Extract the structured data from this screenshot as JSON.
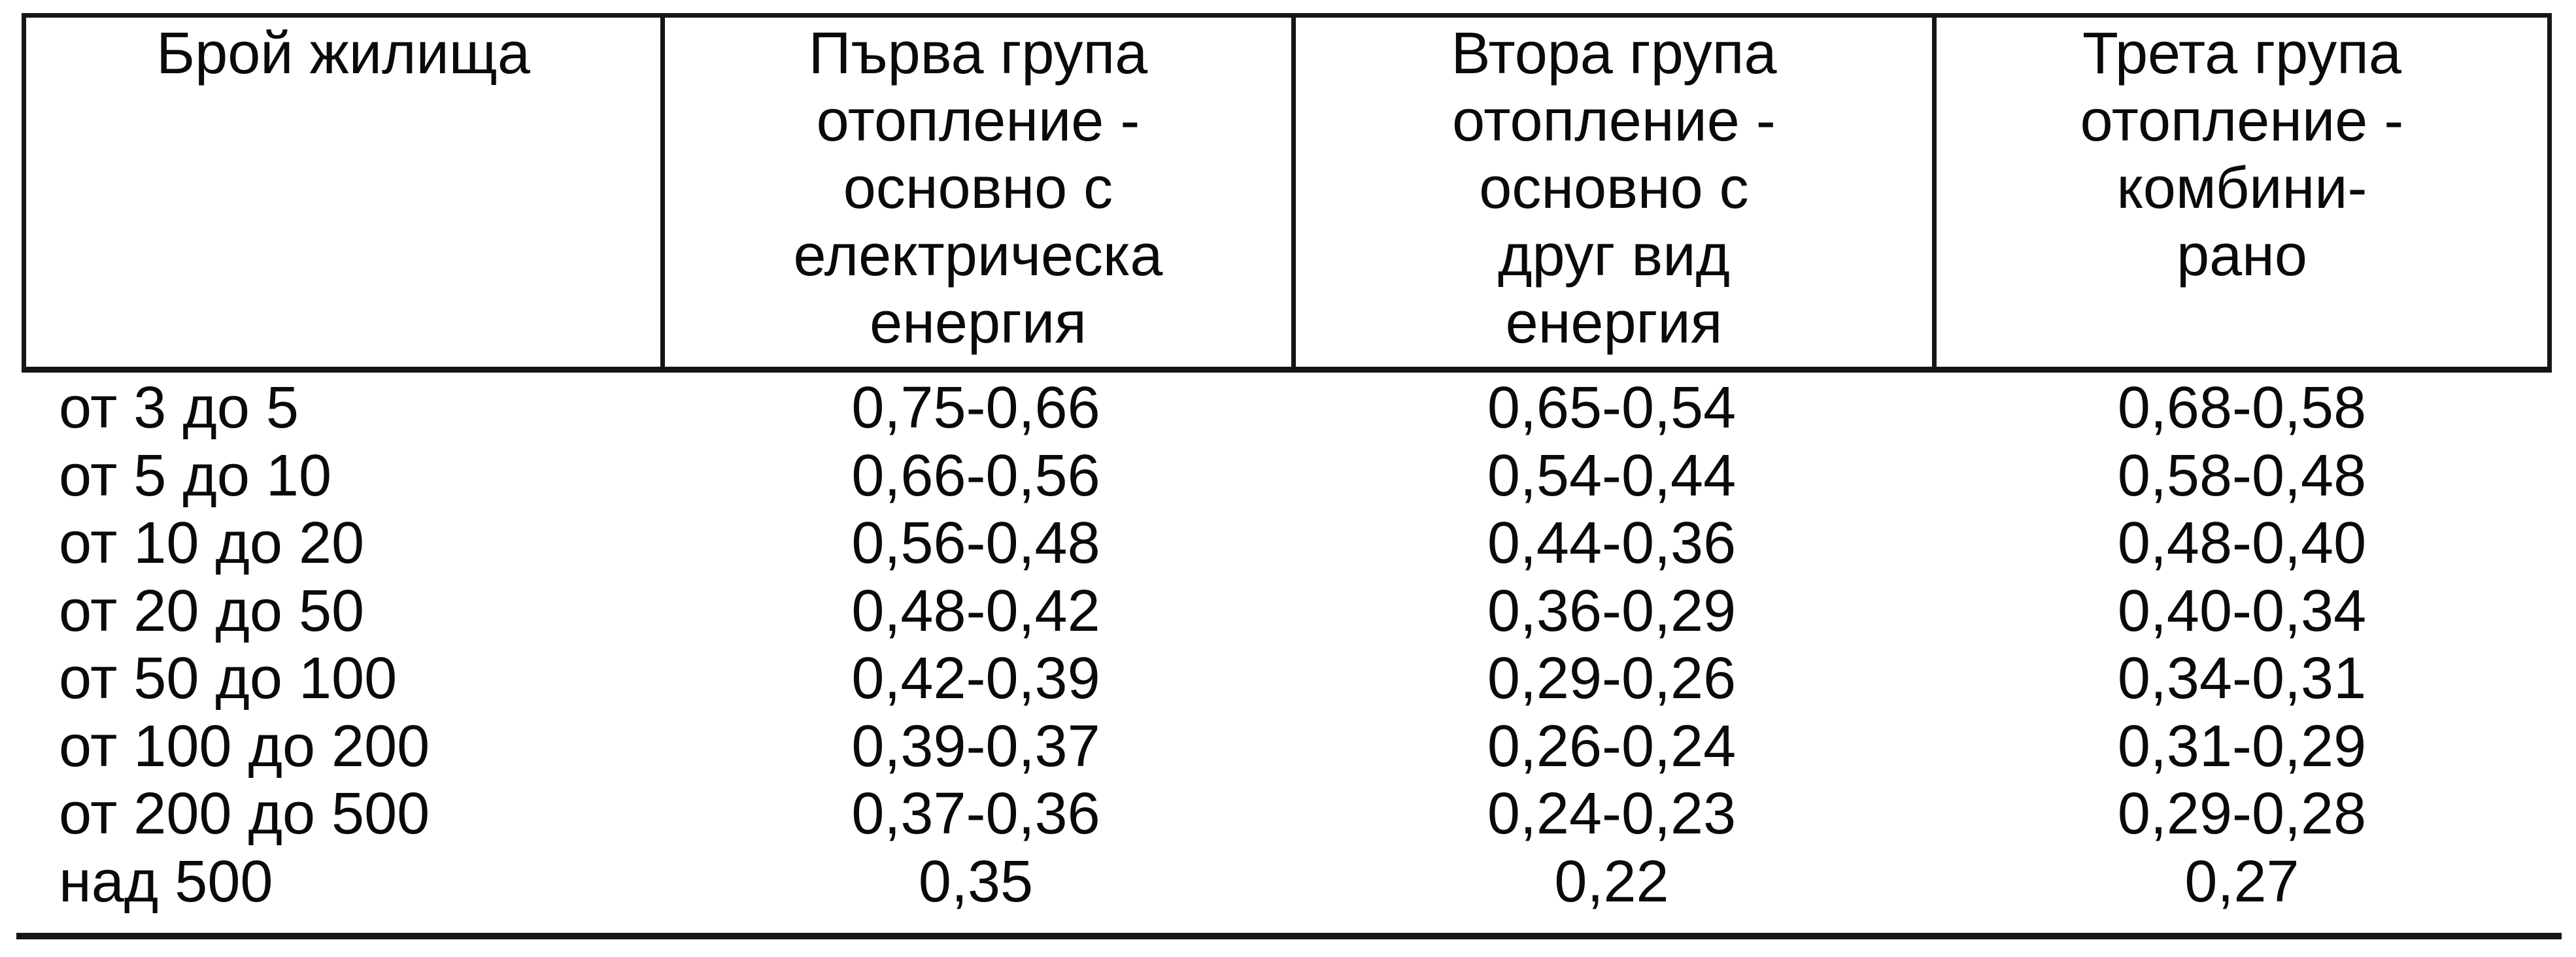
{
  "page": {
    "background_color": "#ffffff",
    "text_color": "#0a0a0a",
    "line_color": "#161616"
  },
  "table": {
    "headers": [
      {
        "label": "Брой жилища"
      },
      {
        "label": "Първа група\nотопление -\nосновно с\nелектрическа\nенергия"
      },
      {
        "label": "Втора група\nотопление -\nосновно с\nдруг вид\nенергия"
      },
      {
        "label": "Трета група\nотопление -\nкомбини-\nрано"
      }
    ],
    "rows": [
      {
        "cells": [
          "от 3 до 5",
          "0,75-0,66",
          "0,65-0,54",
          "0,68-0,58"
        ]
      },
      {
        "cells": [
          "от 5 до 10",
          "0,66-0,56",
          "0,54-0,44",
          "0,58-0,48"
        ]
      },
      {
        "cells": [
          "от 10 до 20",
          "0,56-0,48",
          "0,44-0,36",
          "0,48-0,40"
        ]
      },
      {
        "cells": [
          "от 20 до 50",
          "0,48-0,42",
          "0,36-0,29",
          "0,40-0,34"
        ]
      },
      {
        "cells": [
          "от 50 до 100",
          "0,42-0,39",
          "0,29-0,26",
          "0,34-0,31"
        ]
      },
      {
        "cells": [
          "от 100 до 200",
          "0,39-0,37",
          "0,26-0,24",
          "0,31-0,29"
        ]
      },
      {
        "cells": [
          "от 200 до 500",
          "0,37-0,36",
          "0,24-0,23",
          "0,29-0,28"
        ]
      },
      {
        "cells": [
          "над 500",
          "0,35",
          "0,22",
          "0,27"
        ]
      }
    ]
  }
}
